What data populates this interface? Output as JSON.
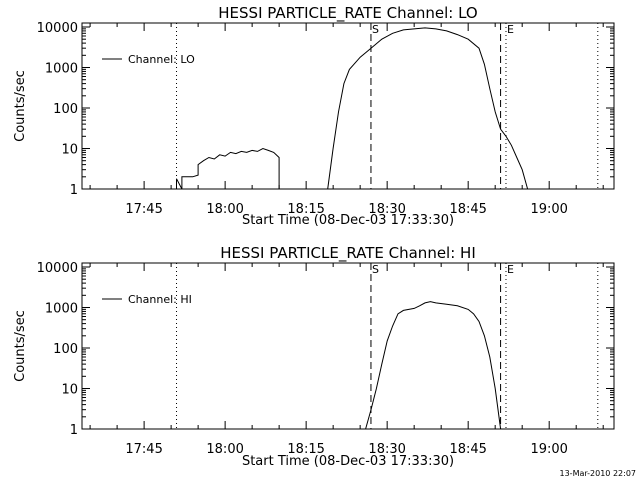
{
  "footer_timestamp": "13-Mar-2010 22:07",
  "chart_data": [
    {
      "type": "line",
      "title": "HESSI PARTICLE_RATE Channel: LO",
      "xlabel": "Start Time (08-Dec-03 17:33:30)",
      "ylabel": "Counts/sec",
      "yscale": "log",
      "ylim": [
        1,
        10000
      ],
      "xlim": [
        "17:33",
        "19:12"
      ],
      "x_ticks": [
        "17:45",
        "18:00",
        "18:15",
        "18:30",
        "18:45",
        "19:00"
      ],
      "y_ticks": [
        "1",
        "10",
        "100",
        "1000",
        "10000"
      ],
      "legend": {
        "position": "top-left",
        "label": "Channel: LO"
      },
      "markers": [
        {
          "type": "dotted",
          "x": "17:51",
          "label": ""
        },
        {
          "type": "dashed",
          "x": "18:27",
          "label": "S"
        },
        {
          "type": "dashed",
          "x": "18:51",
          "label": ""
        },
        {
          "type": "dotted",
          "x": "18:52",
          "label": "E"
        },
        {
          "type": "dotted",
          "x": "19:09",
          "label": ""
        }
      ],
      "series": [
        {
          "name": "Channel: LO",
          "segments": [
            [
              [
                "17:51",
                1
              ],
              [
                "17:51",
                1.8
              ],
              [
                "17:52",
                1
              ],
              [
                "17:52",
                2
              ],
              [
                "17:54",
                2
              ],
              [
                "17:55",
                2.2
              ],
              [
                "17:55",
                4
              ],
              [
                "17:56",
                5
              ],
              [
                "17:57",
                6
              ],
              [
                "17:58",
                5.5
              ],
              [
                "17:59",
                7
              ],
              [
                "18:00",
                6.5
              ],
              [
                "18:01",
                8
              ],
              [
                "18:02",
                7.5
              ],
              [
                "18:03",
                8.5
              ],
              [
                "18:04",
                8
              ],
              [
                "18:05",
                9
              ],
              [
                "18:06",
                8.5
              ],
              [
                "18:07",
                10
              ],
              [
                "18:08",
                9
              ],
              [
                "18:09",
                8
              ],
              [
                "18:10",
                6
              ],
              [
                "18:10",
                1
              ]
            ],
            [
              [
                "18:19",
                1
              ],
              [
                "18:20",
                10
              ],
              [
                "18:21",
                80
              ],
              [
                "18:22",
                400
              ],
              [
                "18:23",
                900
              ],
              [
                "18:25",
                1800
              ],
              [
                "18:27",
                3000
              ],
              [
                "18:29",
                5000
              ],
              [
                "18:31",
                7000
              ],
              [
                "18:33",
                8500
              ],
              [
                "18:35",
                9000
              ],
              [
                "18:37",
                9500
              ],
              [
                "18:39",
                9000
              ],
              [
                "18:41",
                8000
              ],
              [
                "18:43",
                6500
              ],
              [
                "18:45",
                5000
              ],
              [
                "18:47",
                3000
              ],
              [
                "18:48",
                1200
              ],
              [
                "18:49",
                300
              ],
              [
                "18:50",
                80
              ],
              [
                "18:51",
                30
              ],
              [
                "18:52",
                20
              ],
              [
                "18:53",
                12
              ],
              [
                "18:54",
                6
              ],
              [
                "18:55",
                3
              ],
              [
                "18:56",
                1
              ]
            ]
          ]
        }
      ]
    },
    {
      "type": "line",
      "title": "HESSI PARTICLE_RATE Channel: HI",
      "xlabel": "Start Time (08-Dec-03 17:33:30)",
      "ylabel": "Counts/sec",
      "yscale": "log",
      "ylim": [
        1,
        10000
      ],
      "xlim": [
        "17:33",
        "19:12"
      ],
      "x_ticks": [
        "17:45",
        "18:00",
        "18:15",
        "18:30",
        "18:45",
        "19:00"
      ],
      "y_ticks": [
        "1",
        "10",
        "100",
        "1000",
        "10000"
      ],
      "legend": {
        "position": "top-left",
        "label": "Channel: HI"
      },
      "markers": [
        {
          "type": "dotted",
          "x": "17:51",
          "label": ""
        },
        {
          "type": "dashed",
          "x": "18:27",
          "label": "S"
        },
        {
          "type": "dashed",
          "x": "18:51",
          "label": ""
        },
        {
          "type": "dotted",
          "x": "18:52",
          "label": "E"
        },
        {
          "type": "dotted",
          "x": "19:09",
          "label": ""
        }
      ],
      "series": [
        {
          "name": "Channel: HI",
          "segments": [
            [
              [
                "18:26",
                1
              ],
              [
                "18:27",
                3
              ],
              [
                "18:28",
                10
              ],
              [
                "18:29",
                40
              ],
              [
                "18:30",
                150
              ],
              [
                "18:31",
                350
              ],
              [
                "18:32",
                700
              ],
              [
                "18:33",
                850
              ],
              [
                "18:35",
                950
              ],
              [
                "18:36",
                1100
              ],
              [
                "18:37",
                1300
              ],
              [
                "18:38",
                1400
              ],
              [
                "18:39",
                1300
              ],
              [
                "18:41",
                1200
              ],
              [
                "18:43",
                1100
              ],
              [
                "18:45",
                900
              ],
              [
                "18:46",
                700
              ],
              [
                "18:47",
                450
              ],
              [
                "18:48",
                200
              ],
              [
                "18:49",
                60
              ],
              [
                "18:50",
                10
              ],
              [
                "18:51",
                1
              ]
            ]
          ]
        }
      ]
    }
  ]
}
